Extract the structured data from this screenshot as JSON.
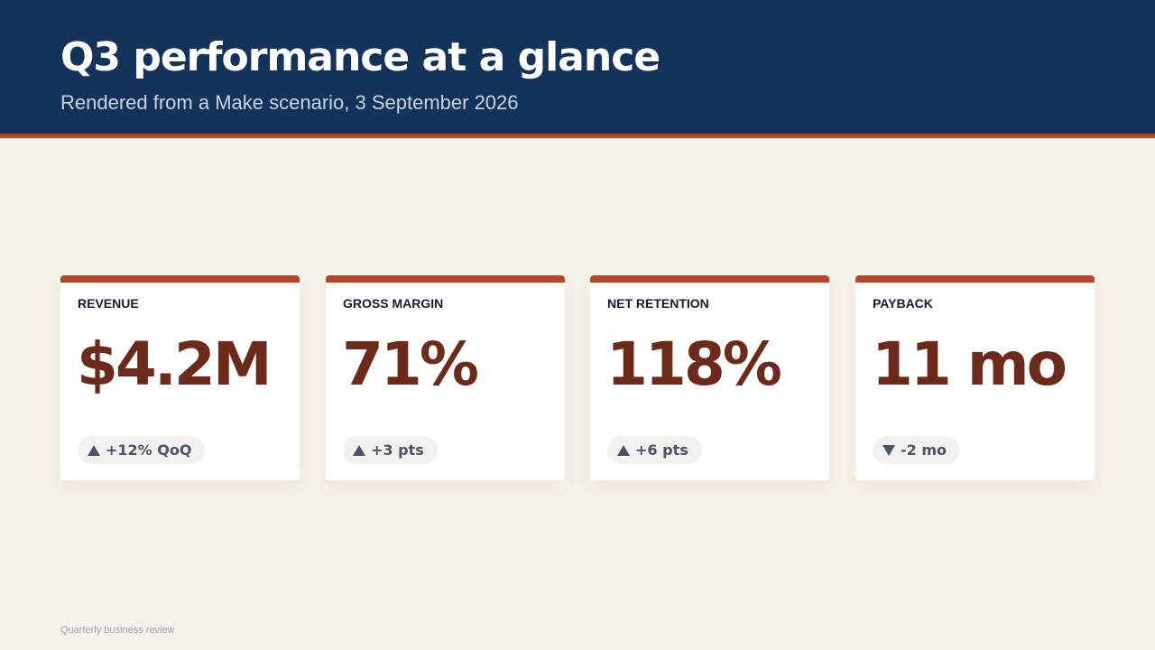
{
  "header": {
    "title": "Q3 performance at a glance",
    "subtitle": "Rendered from a Make scenario, 3 September 2026"
  },
  "cards": [
    {
      "label": "REVENUE",
      "value": "$4.2M",
      "delta": "+12% QoQ"
    },
    {
      "label": "GROSS MARGIN",
      "value": "71%",
      "delta": "+3 pts"
    },
    {
      "label": "NET RETENTION",
      "value": "118%",
      "delta": "+6 pts"
    },
    {
      "label": "PAYBACK",
      "value": "11 mo",
      "delta": "-2 mo"
    }
  ],
  "footer": "Quarterly business review"
}
